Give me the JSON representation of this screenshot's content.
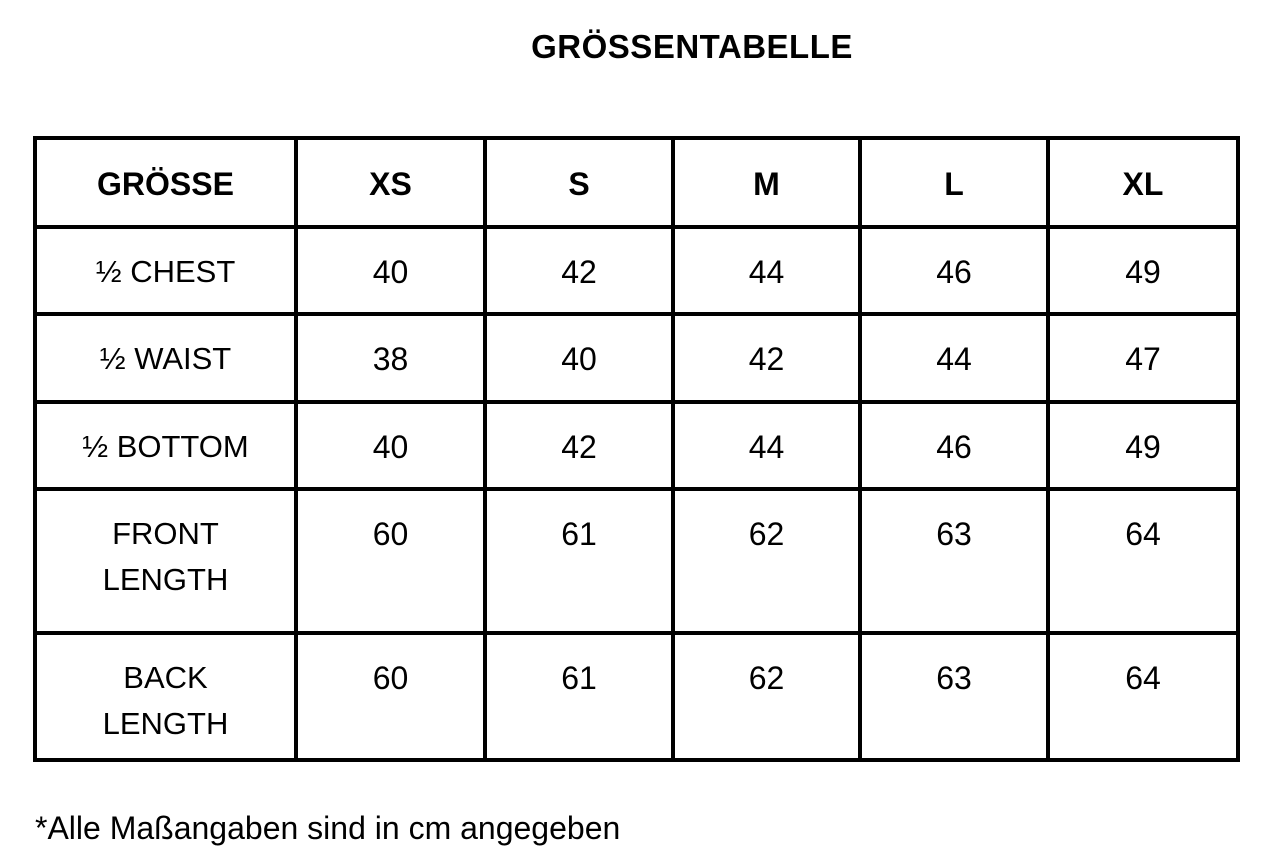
{
  "title": "GRÖSSENTABELLE",
  "table": {
    "headers": [
      "GRÖSSE",
      "XS",
      "S",
      "M",
      "L",
      "XL"
    ],
    "rows": [
      {
        "label": "½ CHEST",
        "values": [
          "40",
          "42",
          "44",
          "46",
          "49"
        ]
      },
      {
        "label": "½ WAIST",
        "values": [
          "38",
          "40",
          "42",
          "44",
          "47"
        ]
      },
      {
        "label": "½ BOTTOM",
        "values": [
          "40",
          "42",
          "44",
          "46",
          "49"
        ]
      },
      {
        "label": "FRONT LENGTH",
        "values": [
          "60",
          "61",
          "62",
          "63",
          "64"
        ]
      },
      {
        "label": "BACK LENGTH",
        "values": [
          "60",
          "61",
          "62",
          "63",
          "64"
        ]
      }
    ]
  },
  "footnote": "*Alle Maßangaben sind in cm angegeben"
}
